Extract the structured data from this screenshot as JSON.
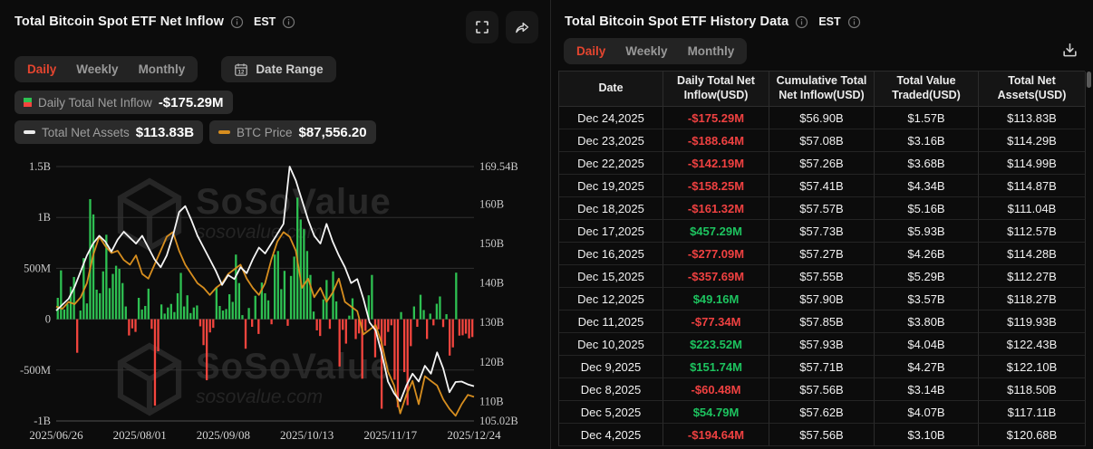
{
  "left_panel": {
    "title": "Total Bitcoin Spot ETF Net Inflow",
    "est_label": "EST",
    "tabs": [
      "Daily",
      "Weekly",
      "Monthly"
    ],
    "active_tab": "Daily",
    "date_range_label": "Date Range",
    "legend": [
      {
        "label": "Daily Total Net Inflow",
        "value": "-$175.29M",
        "swatch": "green-red-square"
      },
      {
        "label": "Total Net Assets",
        "value": "$113.83B",
        "swatch": "white-dash"
      },
      {
        "label": "BTC Price",
        "value": "$87,556.20",
        "swatch": "orange-dash"
      }
    ]
  },
  "right_panel": {
    "title": "Total Bitcoin Spot ETF History Data",
    "est_label": "EST",
    "tabs": [
      "Daily",
      "Weekly",
      "Monthly"
    ],
    "active_tab": "Daily",
    "table": {
      "columns": [
        "Date",
        "Daily Total Net Inflow(USD)",
        "Cumulative Total Net Inflow(USD)",
        "Total Value Traded(USD)",
        "Total Net Assets(USD)"
      ],
      "rows": [
        {
          "date": "Dec 24,2025",
          "daily_net_inflow": "-$175.29M",
          "cumulative_net_inflow": "$56.90B",
          "value_traded": "$1.57B",
          "net_assets": "$113.83B"
        },
        {
          "date": "Dec 23,2025",
          "daily_net_inflow": "-$188.64M",
          "cumulative_net_inflow": "$57.08B",
          "value_traded": "$3.16B",
          "net_assets": "$114.29B"
        },
        {
          "date": "Dec 22,2025",
          "daily_net_inflow": "-$142.19M",
          "cumulative_net_inflow": "$57.26B",
          "value_traded": "$3.68B",
          "net_assets": "$114.99B"
        },
        {
          "date": "Dec 19,2025",
          "daily_net_inflow": "-$158.25M",
          "cumulative_net_inflow": "$57.41B",
          "value_traded": "$4.34B",
          "net_assets": "$114.87B"
        },
        {
          "date": "Dec 18,2025",
          "daily_net_inflow": "-$161.32M",
          "cumulative_net_inflow": "$57.57B",
          "value_traded": "$5.16B",
          "net_assets": "$111.04B"
        },
        {
          "date": "Dec 17,2025",
          "daily_net_inflow": "$457.29M",
          "cumulative_net_inflow": "$57.73B",
          "value_traded": "$5.93B",
          "net_assets": "$112.57B"
        },
        {
          "date": "Dec 16,2025",
          "daily_net_inflow": "-$277.09M",
          "cumulative_net_inflow": "$57.27B",
          "value_traded": "$4.26B",
          "net_assets": "$114.28B"
        },
        {
          "date": "Dec 15,2025",
          "daily_net_inflow": "-$357.69M",
          "cumulative_net_inflow": "$57.55B",
          "value_traded": "$5.29B",
          "net_assets": "$112.27B"
        },
        {
          "date": "Dec 12,2025",
          "daily_net_inflow": "$49.16M",
          "cumulative_net_inflow": "$57.90B",
          "value_traded": "$3.57B",
          "net_assets": "$118.27B"
        },
        {
          "date": "Dec 11,2025",
          "daily_net_inflow": "-$77.34M",
          "cumulative_net_inflow": "$57.85B",
          "value_traded": "$3.80B",
          "net_assets": "$119.93B"
        },
        {
          "date": "Dec 10,2025",
          "daily_net_inflow": "$223.52M",
          "cumulative_net_inflow": "$57.93B",
          "value_traded": "$4.04B",
          "net_assets": "$122.43B"
        },
        {
          "date": "Dec 9,2025",
          "daily_net_inflow": "$151.74M",
          "cumulative_net_inflow": "$57.71B",
          "value_traded": "$4.27B",
          "net_assets": "$122.10B"
        },
        {
          "date": "Dec 8,2025",
          "daily_net_inflow": "-$60.48M",
          "cumulative_net_inflow": "$57.56B",
          "value_traded": "$3.14B",
          "net_assets": "$118.50B"
        },
        {
          "date": "Dec 5,2025",
          "daily_net_inflow": "$54.79M",
          "cumulative_net_inflow": "$57.62B",
          "value_traded": "$4.07B",
          "net_assets": "$117.11B"
        },
        {
          "date": "Dec 4,2025",
          "daily_net_inflow": "-$194.64M",
          "cumulative_net_inflow": "$57.56B",
          "value_traded": "$3.10B",
          "net_assets": "$120.68B"
        }
      ]
    }
  },
  "watermark": {
    "brand": "SoSoValue",
    "domain": "sosovalue.com"
  },
  "colors": {
    "accent_red": "#e5452f",
    "bar_green": "#2ec152",
    "bar_red": "#f4453e",
    "line_white": "#f5f5f5",
    "line_orange": "#d78e1f",
    "table_green": "#1dc35f",
    "table_red": "#ef4141",
    "gridline": "#303030",
    "axis_line": "#4f4f4f"
  },
  "chart_data": {
    "type": "bar+line combo",
    "title": "Total Bitcoin Spot ETF Net Inflow",
    "x_labels": [
      "2025/06/26",
      "2025/08/01",
      "2025/09/08",
      "2025/10/13",
      "2025/11/17",
      "2025/12/24"
    ],
    "left_axis": {
      "unit": "USD",
      "min": -1000,
      "max": 1500,
      "tick_values": [
        1500,
        1000,
        500,
        0,
        -500,
        -1000
      ],
      "tick_labels": [
        "1.5B",
        "1B",
        "500M",
        "0",
        "-500M",
        "-1B"
      ]
    },
    "right_axis": {
      "unit": "USD (Total Net Assets)",
      "min": 105.02,
      "max": 169.54,
      "tick_values": [
        169.54,
        160,
        150,
        140,
        130,
        120,
        110,
        105.02
      ],
      "tick_labels": [
        "169.54B",
        "160B",
        "150B",
        "140B",
        "130B",
        "120B",
        "110B",
        "105.02B"
      ]
    },
    "grid": true,
    "legend_position": "top-left",
    "series": [
      {
        "name": "Daily Total Net Inflow",
        "type": "bar",
        "unit": "M USD",
        "axis": "left",
        "values": [
          210,
          480,
          95,
          150,
          320,
          415,
          -330,
          85,
          600,
          155,
          1180,
          1030,
          290,
          255,
          470,
          830,
          305,
          445,
          525,
          495,
          355,
          125,
          -160,
          -90,
          -125,
          210,
          95,
          130,
          300,
          -95,
          -850,
          -315,
          145,
          55,
          115,
          150,
          70,
          255,
          455,
          125,
          235,
          60,
          115,
          135,
          -70,
          -255,
          -600,
          -130,
          -85,
          310,
          130,
          85,
          100,
          245,
          170,
          635,
          355,
          40,
          -290,
          110,
          -75,
          230,
          -145,
          360,
          255,
          185,
          -50,
          635,
          670,
          295,
          475,
          -65,
          425,
          615,
          1195,
          980,
          885,
          670,
          435,
          75,
          -110,
          -165,
          195,
          385,
          -95,
          470,
          175,
          -465,
          -105,
          -240,
          35,
          205,
          -195,
          -140,
          -585,
          -115,
          235,
          435,
          -375,
          -100,
          -880,
          -260,
          -125,
          -60,
          -595,
          -865,
          70,
          -520,
          -845,
          -265,
          125,
          -75,
          240,
          90,
          -194.64,
          54.79,
          -60.48,
          151.74,
          223.52,
          -77.34,
          49.16,
          -357.69,
          -277.09,
          457.29,
          -161.32,
          -158.25,
          -142.19,
          -188.64,
          -175.29
        ]
      },
      {
        "name": "Total Net Assets",
        "type": "line",
        "unit": "B USD",
        "axis": "right",
        "values": [
          133,
          134.5,
          136,
          139,
          143,
          147,
          150,
          152,
          150.5,
          148,
          151,
          153,
          151.5,
          150,
          152,
          149,
          146,
          144,
          147,
          152,
          158,
          159.5,
          156,
          152,
          149,
          146,
          143,
          139.5,
          142,
          141,
          144,
          142.5,
          146,
          149,
          147.5,
          150,
          152.5,
          155,
          169.54,
          166,
          161,
          156,
          152,
          150,
          155,
          150.5,
          147,
          144,
          140,
          141,
          136,
          130,
          128,
          122,
          115,
          112,
          110,
          114,
          117,
          115,
          119,
          117,
          122.4,
          118.3,
          112.3,
          114.9,
          115,
          114.3,
          113.83
        ]
      },
      {
        "name": "BTC Price",
        "type": "line",
        "unit": "K USD",
        "axis": "hidden",
        "scale": {
          "min": 82,
          "max": 126
        },
        "values": [
          107,
          106.5,
          108,
          107.5,
          109,
          112,
          118,
          122,
          120,
          118.5,
          119,
          117,
          116,
          118,
          114,
          113,
          116,
          119,
          122,
          123,
          119,
          116,
          114,
          112,
          111,
          109.5,
          111,
          112,
          114,
          115,
          116,
          113,
          111,
          109.5,
          112,
          117,
          121,
          123,
          122,
          119,
          111,
          113,
          109,
          111,
          108,
          110,
          113,
          108,
          107,
          106,
          101,
          102,
          103,
          99,
          93,
          90,
          84,
          88,
          91,
          86,
          92,
          91,
          90,
          87,
          85,
          83.5,
          86,
          88,
          87.56
        ]
      }
    ],
    "latest": {
      "daily_net_inflow": "-$175.29M",
      "total_net_assets": "$113.83B",
      "btc_price": "$87,556.20"
    }
  }
}
